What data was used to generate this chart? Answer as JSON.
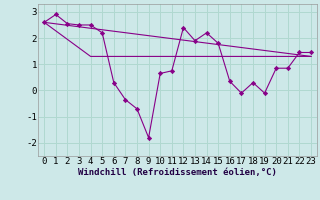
{
  "background_color": "#cde8e8",
  "grid_color": "#b0d8d0",
  "line_color": "#880088",
  "marker_color": "#880088",
  "xlabel": "Windchill (Refroidissement éolien,°C)",
  "xlabel_fontsize": 6.5,
  "tick_fontsize": 6.5,
  "xlim": [
    -0.5,
    23.5
  ],
  "ylim": [
    -2.5,
    3.3
  ],
  "yticks": [
    -2,
    -1,
    0,
    1,
    2,
    3
  ],
  "xticks": [
    0,
    1,
    2,
    3,
    4,
    5,
    6,
    7,
    8,
    9,
    10,
    11,
    12,
    13,
    14,
    15,
    16,
    17,
    18,
    19,
    20,
    21,
    22,
    23
  ],
  "series1_x": [
    0,
    1,
    2,
    3,
    4,
    5,
    6,
    7,
    8,
    9,
    10,
    11,
    12,
    13,
    14,
    15,
    16,
    17,
    18,
    19,
    20,
    21,
    22,
    23
  ],
  "series1_y": [
    2.6,
    2.9,
    2.55,
    2.5,
    2.5,
    2.2,
    0.3,
    -0.35,
    -0.7,
    -1.8,
    0.65,
    0.75,
    2.4,
    1.9,
    2.2,
    1.8,
    0.35,
    -0.1,
    0.3,
    -0.1,
    0.85,
    0.85,
    1.45,
    1.45
  ],
  "series2_x": [
    0,
    23
  ],
  "series2_y": [
    2.6,
    1.3
  ],
  "series3_x": [
    0,
    4,
    9,
    23
  ],
  "series3_y": [
    2.6,
    1.3,
    1.3,
    1.3
  ]
}
